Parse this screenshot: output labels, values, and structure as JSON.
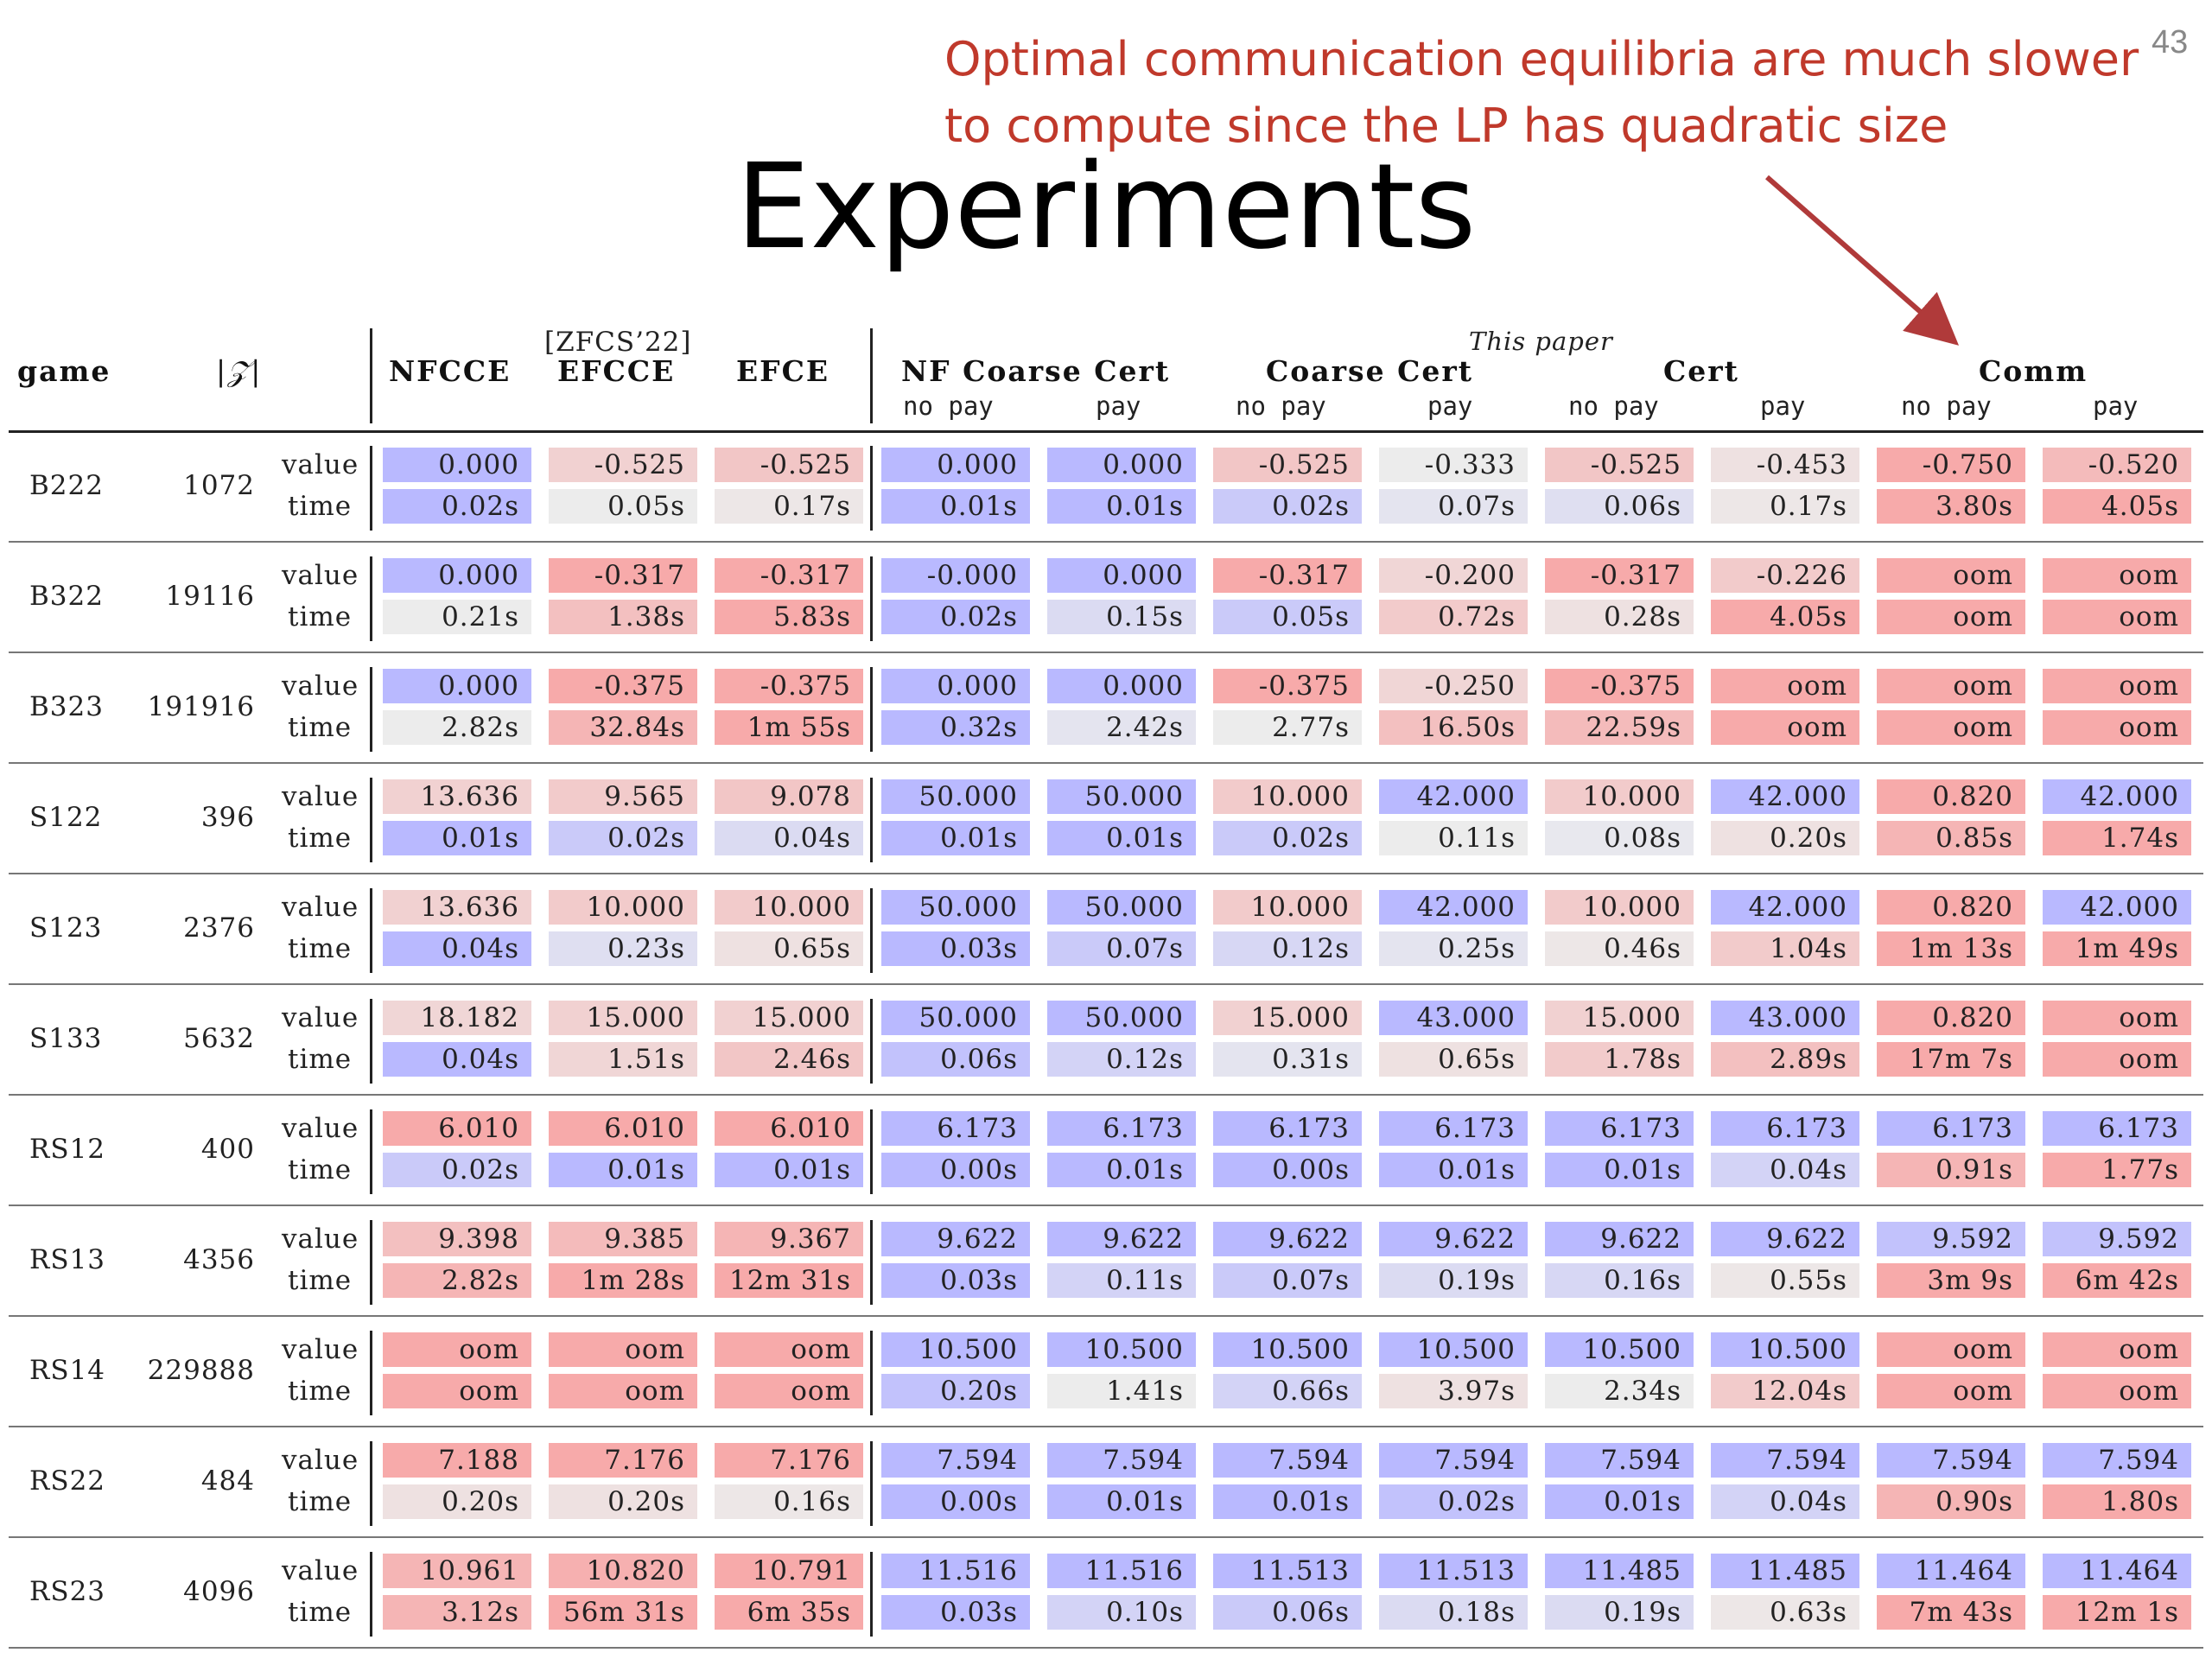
{
  "slide_number": "43",
  "callout": {
    "line1": "Optimal communication equilibria are much slower",
    "line2": "to compute since the LP has quadratic size",
    "color": "#c0392b"
  },
  "title": "Experiments",
  "header": {
    "game": "game",
    "z": "|𝒵|",
    "ref_note": "[ZFCS’22]",
    "this_paper": "This paper",
    "groups": [
      "NFCCE",
      "EFCCE",
      "EFCE",
      "NF Coarse Cert",
      "Coarse Cert",
      "Cert",
      "Comm"
    ],
    "sub": [
      "no pay",
      "pay",
      "no pay",
      "pay",
      "no pay",
      "pay",
      "no pay",
      "pay"
    ]
  },
  "row_labels": {
    "value": "value",
    "time": "time"
  },
  "colors": {
    "blue": "#b9b9ff",
    "red": "#f7aaaa",
    "neutral": "#ececec"
  },
  "rows": [
    {
      "game": "B222",
      "z": "1072",
      "values": [
        "0.000",
        "-0.525",
        "-0.525",
        "0.000",
        "0.000",
        "-0.525",
        "-0.333",
        "-0.525",
        "-0.453",
        "-0.750",
        "-0.520"
      ],
      "times": [
        "0.02s",
        "0.05s",
        "0.17s",
        "0.01s",
        "0.01s",
        "0.02s",
        "0.07s",
        "0.06s",
        "0.17s",
        "3.80s",
        "4.05s"
      ],
      "vc": [
        -0.9,
        0.25,
        0.35,
        -0.9,
        -0.9,
        0.35,
        0,
        0.35,
        0.1,
        0.8,
        0.45
      ],
      "tc": [
        -0.6,
        0,
        0.05,
        -0.6,
        -0.6,
        -0.4,
        -0.1,
        -0.15,
        0.05,
        0.6,
        0.6
      ]
    },
    {
      "game": "B322",
      "z": "19116",
      "values": [
        "0.000",
        "-0.317",
        "-0.317",
        "-0.000",
        "0.000",
        "-0.317",
        "-0.200",
        "-0.317",
        "-0.226",
        "oom",
        "oom"
      ],
      "times": [
        "0.21s",
        "1.38s",
        "5.83s",
        "0.02s",
        "0.15s",
        "0.05s",
        "0.72s",
        "0.28s",
        "4.05s",
        "oom",
        "oom"
      ],
      "vc": [
        -0.9,
        0.6,
        0.6,
        -0.9,
        -0.9,
        0.6,
        0.2,
        0.6,
        0.3,
        0.65,
        0.65
      ],
      "tc": [
        0,
        0.4,
        0.6,
        -0.6,
        -0.2,
        -0.4,
        0.3,
        0.1,
        0.6,
        0.6,
        0.6
      ]
    },
    {
      "game": "B323",
      "z": "191916",
      "values": [
        "0.000",
        "-0.375",
        "-0.375",
        "0.000",
        "0.000",
        "-0.375",
        "-0.250",
        "-0.375",
        "oom",
        "oom",
        "oom"
      ],
      "times": [
        "2.82s",
        "32.84s",
        "1m 55s",
        "0.32s",
        "2.42s",
        "2.77s",
        "16.50s",
        "22.59s",
        "oom",
        "oom",
        "oom"
      ],
      "vc": [
        -0.9,
        0.6,
        0.6,
        -0.9,
        -0.9,
        0.6,
        0.2,
        0.6,
        0.65,
        0.65,
        0.65
      ],
      "tc": [
        0,
        0.5,
        0.65,
        -0.6,
        -0.1,
        0,
        0.4,
        0.45,
        0.6,
        0.6,
        0.6
      ]
    },
    {
      "game": "S122",
      "z": "396",
      "values": [
        "13.636",
        "9.565",
        "9.078",
        "50.000",
        "50.000",
        "10.000",
        "42.000",
        "10.000",
        "42.000",
        "0.820",
        "42.000"
      ],
      "times": [
        "0.01s",
        "0.02s",
        "0.04s",
        "0.01s",
        "0.01s",
        "0.02s",
        "0.11s",
        "0.08s",
        "0.20s",
        "0.85s",
        "1.74s"
      ],
      "vc": [
        0.25,
        0.3,
        0.35,
        -0.85,
        -0.85,
        0.3,
        -0.6,
        0.3,
        -0.6,
        0.6,
        -0.6
      ],
      "tc": [
        -0.6,
        -0.4,
        -0.2,
        -0.6,
        -0.6,
        -0.4,
        0,
        -0.05,
        0.1,
        0.5,
        0.6
      ]
    },
    {
      "game": "S123",
      "z": "2376",
      "values": [
        "13.636",
        "10.000",
        "10.000",
        "50.000",
        "50.000",
        "10.000",
        "42.000",
        "10.000",
        "42.000",
        "0.820",
        "42.000"
      ],
      "times": [
        "0.04s",
        "0.23s",
        "0.65s",
        "0.03s",
        "0.07s",
        "0.12s",
        "0.25s",
        "0.46s",
        "1.04s",
        "1m 13s",
        "1m 49s"
      ],
      "vc": [
        0.25,
        0.3,
        0.3,
        -0.85,
        -0.85,
        0.3,
        -0.6,
        0.3,
        -0.6,
        0.6,
        -0.6
      ],
      "tc": [
        -0.6,
        -0.15,
        0.1,
        -0.6,
        -0.4,
        -0.25,
        -0.1,
        0.05,
        0.3,
        0.6,
        0.6
      ]
    },
    {
      "game": "S133",
      "z": "5632",
      "values": [
        "18.182",
        "15.000",
        "15.000",
        "50.000",
        "50.000",
        "15.000",
        "43.000",
        "15.000",
        "43.000",
        "0.820",
        "oom"
      ],
      "times": [
        "0.04s",
        "1.51s",
        "2.46s",
        "0.06s",
        "0.12s",
        "0.31s",
        "0.65s",
        "1.78s",
        "2.89s",
        "17m 7s",
        "oom"
      ],
      "vc": [
        0.2,
        0.25,
        0.25,
        -0.85,
        -0.85,
        0.25,
        -0.6,
        0.25,
        -0.6,
        0.6,
        0.6
      ],
      "tc": [
        -0.6,
        0.2,
        0.35,
        -0.5,
        -0.3,
        -0.1,
        0.1,
        0.3,
        0.4,
        0.6,
        0.6
      ]
    },
    {
      "game": "RS12",
      "z": "400",
      "values": [
        "6.010",
        "6.010",
        "6.010",
        "6.173",
        "6.173",
        "6.173",
        "6.173",
        "6.173",
        "6.173",
        "6.173",
        "6.173"
      ],
      "times": [
        "0.02s",
        "0.01s",
        "0.01s",
        "0.00s",
        "0.01s",
        "0.00s",
        "0.01s",
        "0.01s",
        "0.04s",
        "0.91s",
        "1.77s"
      ],
      "vc": [
        0.6,
        0.6,
        0.6,
        -0.85,
        -0.85,
        -0.85,
        -0.85,
        -0.85,
        -0.85,
        -0.85,
        -0.85
      ],
      "tc": [
        -0.4,
        -0.6,
        -0.6,
        -0.7,
        -0.6,
        -0.7,
        -0.6,
        -0.6,
        -0.3,
        0.5,
        0.6
      ]
    },
    {
      "game": "RS13",
      "z": "4356",
      "values": [
        "9.398",
        "9.385",
        "9.367",
        "9.622",
        "9.622",
        "9.622",
        "9.622",
        "9.622",
        "9.622",
        "9.592",
        "9.592"
      ],
      "times": [
        "2.82s",
        "1m 28s",
        "12m 31s",
        "0.03s",
        "0.11s",
        "0.07s",
        "0.19s",
        "0.16s",
        "0.55s",
        "3m 9s",
        "6m 42s"
      ],
      "vc": [
        0.4,
        0.45,
        0.5,
        -0.85,
        -0.85,
        -0.85,
        -0.85,
        -0.85,
        -0.85,
        -0.5,
        -0.5
      ],
      "tc": [
        0.5,
        0.6,
        0.6,
        -0.6,
        -0.3,
        -0.4,
        -0.2,
        -0.25,
        0.05,
        0.6,
        0.6
      ]
    },
    {
      "game": "RS14",
      "z": "229888",
      "values": [
        "oom",
        "oom",
        "oom",
        "10.500",
        "10.500",
        "10.500",
        "10.500",
        "10.500",
        "10.500",
        "oom",
        "oom"
      ],
      "times": [
        "oom",
        "oom",
        "oom",
        "0.20s",
        "1.41s",
        "0.66s",
        "3.97s",
        "2.34s",
        "12.04s",
        "oom",
        "oom"
      ],
      "vc": [
        0.6,
        0.6,
        0.6,
        -0.85,
        -0.85,
        -0.85,
        -0.85,
        -0.85,
        -0.85,
        0.6,
        0.6
      ],
      "tc": [
        0.6,
        0.6,
        0.6,
        -0.5,
        0,
        -0.3,
        0.1,
        0,
        0.3,
        0.6,
        0.6
      ]
    },
    {
      "game": "RS22",
      "z": "484",
      "values": [
        "7.188",
        "7.176",
        "7.176",
        "7.594",
        "7.594",
        "7.594",
        "7.594",
        "7.594",
        "7.594",
        "7.594",
        "7.594"
      ],
      "times": [
        "0.20s",
        "0.20s",
        "0.16s",
        "0.00s",
        "0.01s",
        "0.01s",
        "0.02s",
        "0.01s",
        "0.04s",
        "0.90s",
        "1.80s"
      ],
      "vc": [
        0.6,
        0.6,
        0.6,
        -0.85,
        -0.85,
        -0.85,
        -0.85,
        -0.85,
        -0.85,
        -0.85,
        -0.85
      ],
      "tc": [
        0.1,
        0.1,
        0.05,
        -0.7,
        -0.6,
        -0.6,
        -0.5,
        -0.6,
        -0.3,
        0.5,
        0.6
      ]
    },
    {
      "game": "RS23",
      "z": "4096",
      "values": [
        "10.961",
        "10.820",
        "10.791",
        "11.516",
        "11.516",
        "11.513",
        "11.513",
        "11.485",
        "11.485",
        "11.464",
        "11.464"
      ],
      "times": [
        "3.12s",
        "56m 31s",
        "6m 35s",
        "0.03s",
        "0.10s",
        "0.06s",
        "0.18s",
        "0.19s",
        "0.63s",
        "7m 43s",
        "12m 1s"
      ],
      "vc": [
        0.5,
        0.55,
        0.6,
        -0.85,
        -0.85,
        -0.8,
        -0.8,
        -0.7,
        -0.7,
        -0.6,
        -0.6
      ],
      "tc": [
        0.5,
        0.6,
        0.6,
        -0.6,
        -0.3,
        -0.4,
        -0.2,
        -0.2,
        0.05,
        0.6,
        0.6
      ]
    }
  ]
}
